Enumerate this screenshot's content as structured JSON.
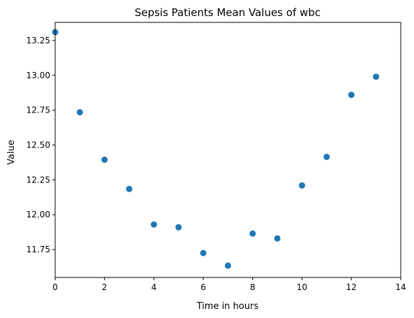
{
  "chart_data": {
    "type": "scatter",
    "title": "Sepsis Patients Mean Values of wbc",
    "xlabel": "Time in hours",
    "ylabel": "Value",
    "xlim": [
      0,
      14
    ],
    "ylim": [
      11.55,
      13.38
    ],
    "x_ticks": [
      0,
      2,
      4,
      6,
      8,
      10,
      12,
      14
    ],
    "y_ticks": [
      11.75,
      12.0,
      12.25,
      12.5,
      12.75,
      13.0,
      13.25
    ],
    "x_tick_labels": [
      "0",
      "2",
      "4",
      "6",
      "8",
      "10",
      "12",
      "14"
    ],
    "y_tick_labels": [
      "11.75",
      "12.00",
      "12.25",
      "12.50",
      "12.75",
      "13.00",
      "13.25"
    ],
    "grid": false,
    "color": "#1f77b4",
    "points": [
      {
        "x": 0,
        "y": 13.31
      },
      {
        "x": 1,
        "y": 12.735
      },
      {
        "x": 2,
        "y": 12.395
      },
      {
        "x": 3,
        "y": 12.185
      },
      {
        "x": 4,
        "y": 11.93
      },
      {
        "x": 5,
        "y": 11.91
      },
      {
        "x": 6,
        "y": 11.725
      },
      {
        "x": 7,
        "y": 11.635
      },
      {
        "x": 8,
        "y": 11.865
      },
      {
        "x": 9,
        "y": 11.83
      },
      {
        "x": 10,
        "y": 12.21
      },
      {
        "x": 11,
        "y": 12.415
      },
      {
        "x": 12,
        "y": 12.86
      },
      {
        "x": 13,
        "y": 12.99
      }
    ]
  }
}
